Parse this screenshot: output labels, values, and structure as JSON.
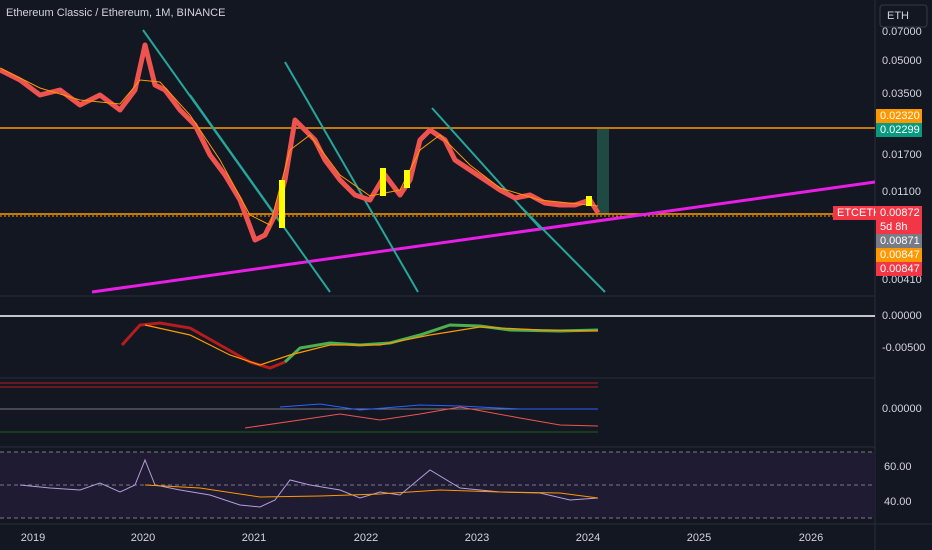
{
  "header": {
    "title": "Ethereum Classic / Ethereum, 1M, BINANCE",
    "currency": "ETH"
  },
  "price_axis": {
    "labels": [
      "0.07000",
      "0.05000",
      "0.03500",
      "0.01700",
      "0.01100",
      "0.00410"
    ]
  },
  "price_tags": {
    "level_high": "0.02320",
    "level_green": "0.02299",
    "symbol": "ETCETH",
    "last": "0.00872",
    "countdown": "5d 8h",
    "gray": "0.00871",
    "level_low": "0.00847",
    "red": "0.00847"
  },
  "macd_axis": {
    "labels": [
      "0.00000",
      "-0.00500"
    ]
  },
  "osc_axis": {
    "labels": [
      "0.00000"
    ]
  },
  "rsi_axis": {
    "labels": [
      "60.00",
      "40.00"
    ]
  },
  "time_axis": {
    "labels": [
      "2019",
      "2020",
      "2021",
      "2022",
      "2023",
      "2024",
      "2025",
      "2026"
    ]
  }
}
